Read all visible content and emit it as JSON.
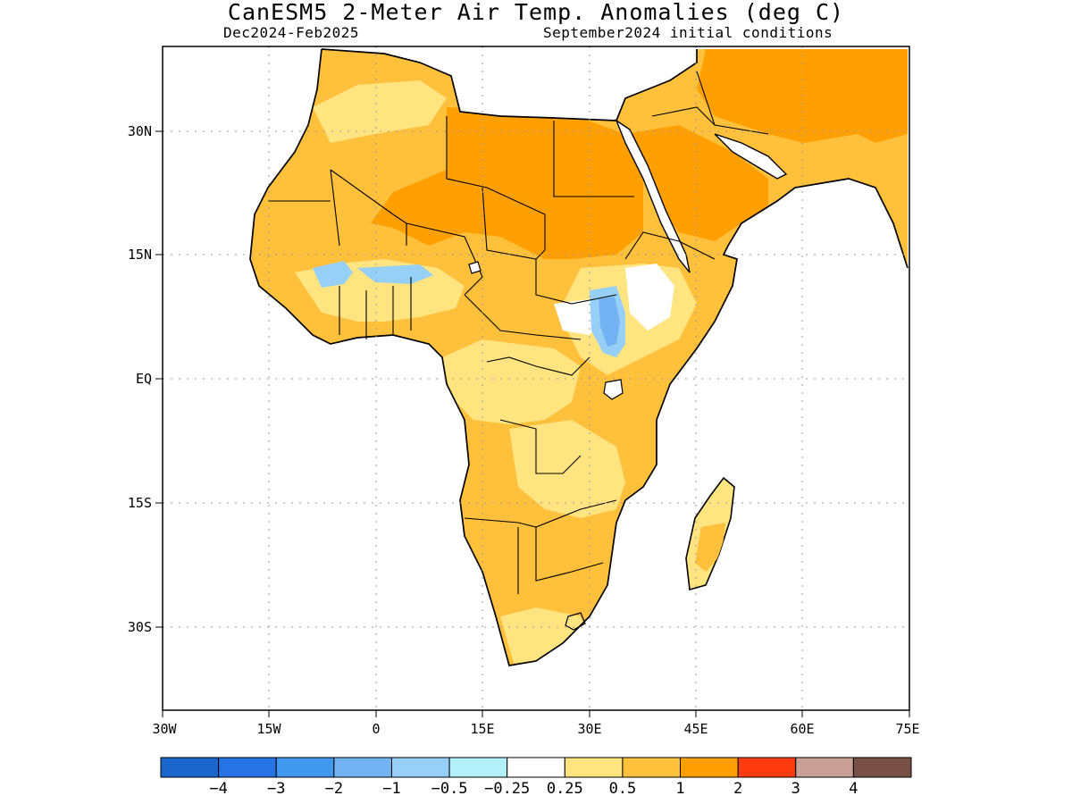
{
  "title": "CanESM5 2-Meter Air Temp. Anomalies (deg C)",
  "subtitle_left": "Dec2024-Feb2025",
  "subtitle_right": "September2024 initial conditions",
  "lon_labels": [
    "30W",
    "15W",
    "0",
    "15E",
    "30E",
    "45E",
    "60E",
    "75E"
  ],
  "lat_labels": [
    "30N",
    "15N",
    "EQ",
    "15S",
    "30S"
  ],
  "colorbar": {
    "labels": [
      "-4",
      "-3",
      "-2",
      "-1",
      "-0.5",
      "-0.25",
      "0.25",
      "0.5",
      "1",
      "2",
      "3",
      "4"
    ],
    "colors": [
      "#1a66cc",
      "#2673e6",
      "#4099ee",
      "#73b3f3",
      "#96d0f8",
      "#b4f0fa",
      "#ffffff",
      "#ffe480",
      "#ffc03c",
      "#ffa000",
      "#ff3c10",
      "#c8a096",
      "#785046"
    ]
  },
  "palette": {
    "land_weak": "#ffe480",
    "land_moderate": "#ffc03c",
    "land_strong": "#ffa000",
    "cool_light": "#96d0f8",
    "cool_medium": "#73b3f3",
    "cool_strong": "#4099ee"
  }
}
